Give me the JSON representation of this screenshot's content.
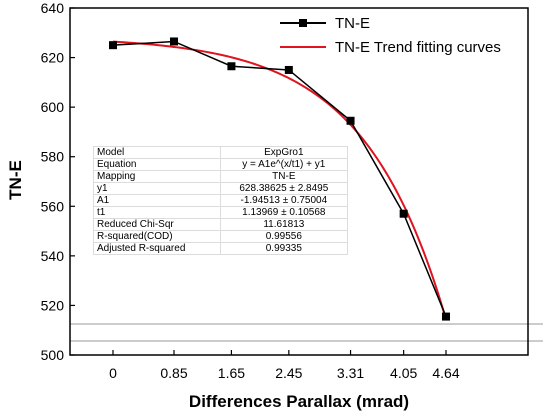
{
  "chart_data": {
    "type": "line",
    "xlabel": "Differences Parallax (mrad)",
    "ylabel": "TN-E",
    "categories": [
      "0",
      "0.85",
      "1.65",
      "2.45",
      "3.31",
      "4.05",
      "4.64"
    ],
    "ylim": [
      500,
      640
    ],
    "yticks": [
      500,
      520,
      540,
      560,
      580,
      600,
      620,
      640
    ],
    "grid": false,
    "legend_position": "top-right",
    "series": [
      {
        "name": "TN-E",
        "style": "line-with-square-markers",
        "color": "#000000",
        "x": [
          0,
          0.85,
          1.65,
          2.45,
          3.31,
          4.05,
          4.64
        ],
        "values": [
          625,
          626.5,
          616.5,
          615,
          594.5,
          557,
          515.5
        ]
      },
      {
        "name": "TN-E Trend fitting curves",
        "style": "smooth-line",
        "color": "#e0141e",
        "model": {
          "A1": -1.94513,
          "t1": 1.13969,
          "y0": 628.38625
        }
      }
    ]
  },
  "fit_table": [
    {
      "label": "Model",
      "value": "ExpGro1"
    },
    {
      "label": "Equation",
      "value": "y = A1e^(x/t1) + y1"
    },
    {
      "label": "Mapping",
      "value": "TN-E"
    },
    {
      "label": "y1",
      "value": "628.38625 ± 2.8495"
    },
    {
      "label": "A1",
      "value": "-1.94513 ± 0.75004"
    },
    {
      "label": "t1",
      "value": "1.13969 ± 0.10568"
    },
    {
      "label": "Reduced Chi-Sqr",
      "value": "11.61813"
    },
    {
      "label": "R-squared(COD)",
      "value": "0.99556"
    },
    {
      "label": "Adjusted R-squared",
      "value": "0.99335"
    }
  ]
}
